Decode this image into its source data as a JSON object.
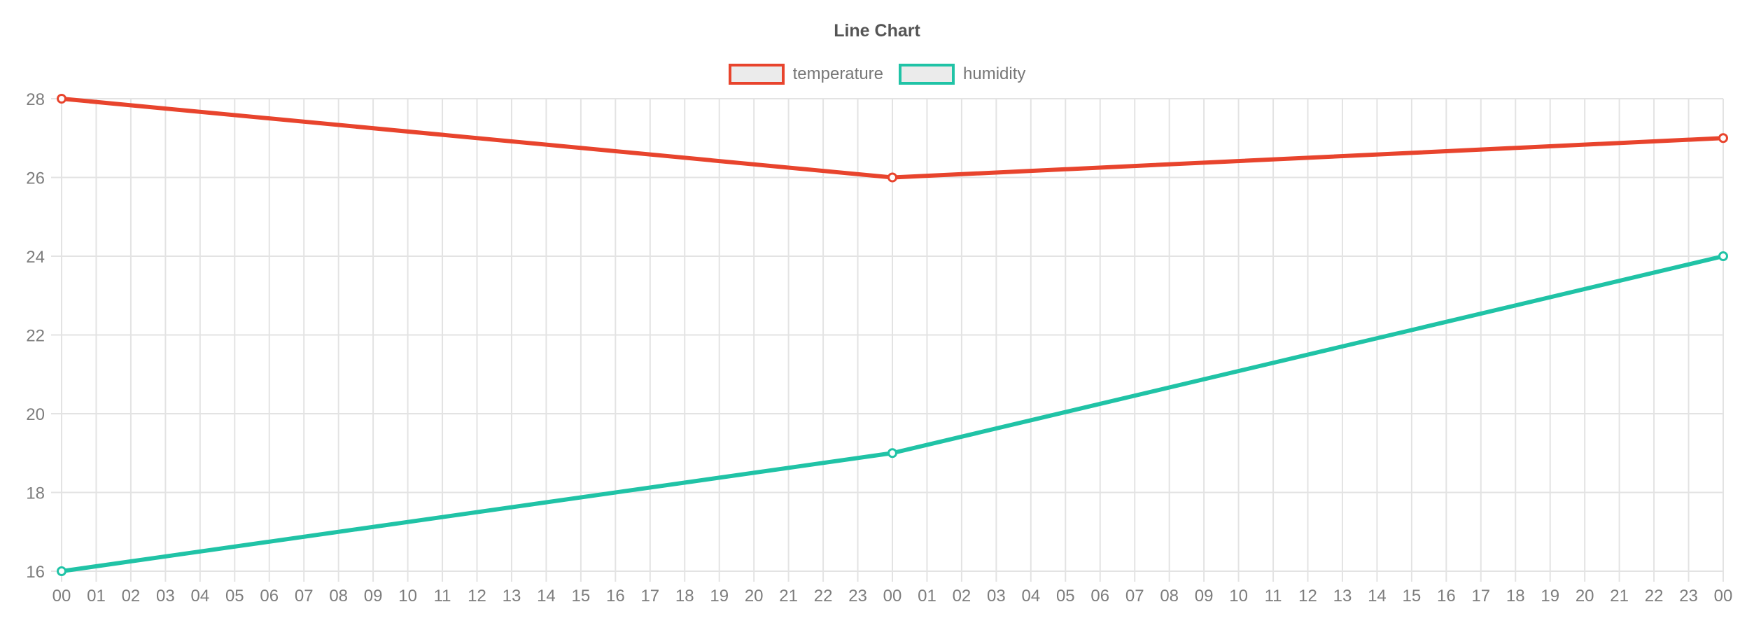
{
  "chart_data": {
    "type": "line",
    "title": "Line Chart",
    "categories": [
      "00",
      "01",
      "02",
      "03",
      "04",
      "05",
      "06",
      "07",
      "08",
      "09",
      "10",
      "11",
      "12",
      "13",
      "14",
      "15",
      "16",
      "17",
      "18",
      "19",
      "20",
      "21",
      "22",
      "23",
      "00",
      "01",
      "02",
      "03",
      "04",
      "05",
      "06",
      "07",
      "08",
      "09",
      "10",
      "11",
      "12",
      "13",
      "14",
      "15",
      "16",
      "17",
      "18",
      "19",
      "20",
      "21",
      "22",
      "23",
      "00"
    ],
    "series": [
      {
        "name": "temperature",
        "color": "#e8442d",
        "points": [
          [
            0,
            28
          ],
          [
            24,
            26
          ],
          [
            48,
            27
          ]
        ]
      },
      {
        "name": "humidity",
        "color": "#20c3a6",
        "points": [
          [
            0,
            16
          ],
          [
            24,
            19
          ],
          [
            48,
            24
          ]
        ]
      }
    ],
    "y_ticks": [
      16,
      18,
      20,
      22,
      24,
      26,
      28
    ],
    "ylim": [
      16,
      28
    ],
    "xlabel": "",
    "ylabel": "",
    "grid": true,
    "legend_position": "top",
    "colors": {
      "grid": "#e3e3e3",
      "axis_label": "#7d7d7d",
      "title": "#555555",
      "legend_text": "#777777",
      "legend_swatch_fill": "#ebebeb",
      "point_fill": "#fdfdfd",
      "background": "#ffffff"
    }
  }
}
